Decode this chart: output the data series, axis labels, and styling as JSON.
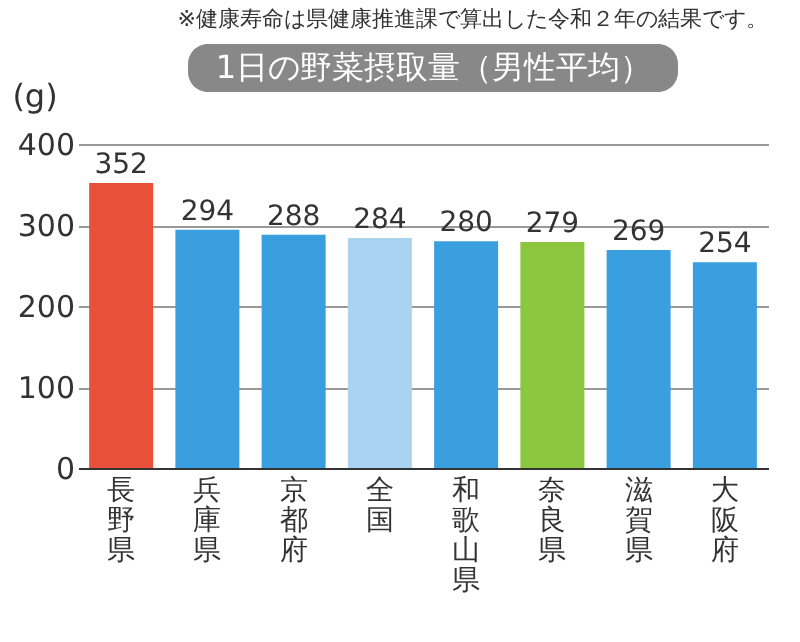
{
  "chart_data": {
    "type": "bar",
    "title": "1日の野菜摂取量（男性平均）",
    "ylabel": "(g)",
    "annotations": [
      "※健康寿命は県健康推進課で算出した令和２年の結果です。"
    ],
    "categories": [
      "長野県",
      "兵庫県",
      "京都府",
      "全国",
      "和歌山県",
      "奈良県",
      "滋賀県",
      "大阪府"
    ],
    "values": [
      352,
      294,
      288,
      284,
      280,
      279,
      269,
      254
    ],
    "colors": [
      "#e8503a",
      "#3a9fdf",
      "#3a9fdf",
      "#a9d3f0",
      "#3a9fdf",
      "#8cc63f",
      "#3a9fdf",
      "#3a9fdf"
    ],
    "ylim": [
      0,
      400
    ],
    "yticks": [
      0,
      100,
      200,
      300,
      400
    ],
    "grid": "y",
    "data_labels": true,
    "legend": false
  }
}
